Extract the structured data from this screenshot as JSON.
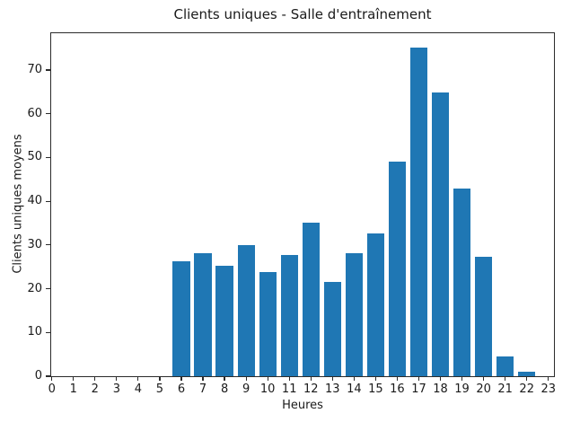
{
  "figure": {
    "title": "Clients uniques - Salle d'entraînement",
    "xlabel": "Heures",
    "ylabel": "Clients uniques moyens"
  },
  "chart_data": {
    "type": "bar",
    "title": "Clients uniques - Salle d'entraînement",
    "xlabel": "Heures",
    "ylabel": "Clients uniques moyens",
    "categories": [
      0,
      1,
      2,
      3,
      4,
      5,
      6,
      7,
      8,
      9,
      10,
      11,
      12,
      13,
      14,
      15,
      16,
      17,
      18,
      19,
      20,
      21,
      22,
      23
    ],
    "values": [
      0,
      0,
      0,
      0,
      0,
      0,
      26.2,
      28.1,
      25.2,
      29.9,
      23.8,
      27.7,
      35.1,
      21.6,
      28.1,
      32.7,
      49.0,
      75.1,
      64.9,
      43.0,
      27.4,
      4.5,
      1.1,
      0
    ],
    "xticks": [
      0,
      1,
      2,
      3,
      4,
      5,
      6,
      7,
      8,
      9,
      10,
      11,
      12,
      13,
      14,
      15,
      16,
      17,
      18,
      19,
      20,
      21,
      22,
      23
    ],
    "yticks": [
      0,
      10,
      20,
      30,
      40,
      50,
      60,
      70
    ],
    "xlim": [
      -0.03,
      23.26
    ],
    "ylim": [
      0,
      78.4
    ],
    "bar_width": 0.8,
    "bar_color": "#1f77b4",
    "spine_color": "#2b2b2b",
    "grid": false,
    "legend_position": "none"
  }
}
